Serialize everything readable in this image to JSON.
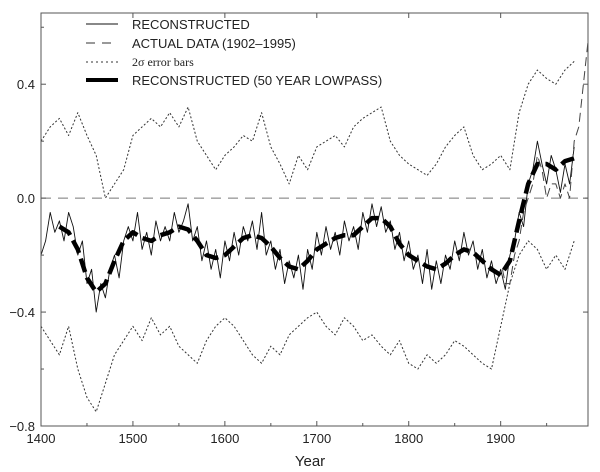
{
  "chart_data": {
    "type": "line",
    "title": "",
    "xlabel": "Year",
    "ylabel": "",
    "xlim": [
      1400,
      1995
    ],
    "ylim": [
      -0.8,
      0.65
    ],
    "x_ticks": [
      "1400",
      "1500",
      "1600",
      "1700",
      "1800",
      "1900"
    ],
    "y_ticks": [
      "0.4",
      "0.0",
      "-0.4",
      "-0.8"
    ],
    "grid": false,
    "zero_line": "dashed",
    "legend_position": "top-left",
    "legend": [
      {
        "label": "RECONSTRUCTED",
        "style": "thin-solid"
      },
      {
        "label": "ACTUAL DATA (1902–1995)",
        "style": "dashed"
      },
      {
        "label": "2σ error bars",
        "style": "dotted"
      },
      {
        "label": "RECONSTRUCTED (50 YEAR LOWPASS)",
        "style": "thick-dashed"
      }
    ],
    "colors": {
      "line": "#111111",
      "axis": "#555555"
    },
    "series": [
      {
        "name": "RECONSTRUCTED",
        "x_start": 1400,
        "x_step": 5,
        "values": [
          -0.2,
          -0.15,
          -0.05,
          -0.12,
          -0.08,
          -0.15,
          -0.05,
          -0.1,
          -0.2,
          -0.15,
          -0.3,
          -0.25,
          -0.4,
          -0.3,
          -0.35,
          -0.25,
          -0.2,
          -0.28,
          -0.15,
          -0.1,
          -0.15,
          -0.05,
          -0.18,
          -0.12,
          -0.2,
          -0.08,
          -0.15,
          -0.1,
          -0.15,
          -0.05,
          -0.12,
          -0.08,
          -0.02,
          -0.15,
          -0.1,
          -0.22,
          -0.15,
          -0.25,
          -0.18,
          -0.28,
          -0.15,
          -0.22,
          -0.12,
          -0.2,
          -0.1,
          -0.15,
          -0.08,
          -0.18,
          -0.05,
          -0.2,
          -0.15,
          -0.25,
          -0.18,
          -0.3,
          -0.22,
          -0.28,
          -0.2,
          -0.32,
          -0.18,
          -0.25,
          -0.12,
          -0.2,
          -0.1,
          -0.18,
          -0.12,
          -0.2,
          -0.08,
          -0.15,
          -0.1,
          -0.18,
          -0.05,
          -0.12,
          -0.02,
          -0.1,
          -0.03,
          -0.12,
          -0.08,
          -0.18,
          -0.12,
          -0.22,
          -0.15,
          -0.25,
          -0.2,
          -0.3,
          -0.18,
          -0.32,
          -0.22,
          -0.3,
          -0.2,
          -0.25,
          -0.15,
          -0.22,
          -0.12,
          -0.2,
          -0.15,
          -0.25,
          -0.18,
          -0.28,
          -0.22,
          -0.3,
          -0.25,
          -0.32,
          -0.2,
          -0.15,
          -0.05,
          -0.1,
          0.05,
          0.1,
          0.2,
          0.12,
          0.05,
          0.15,
          0.1,
          0.02,
          0.12,
          0.05,
          0.18
        ]
      },
      {
        "name": "ACTUAL DATA (1902–1995)",
        "x": [
          1902,
          1905,
          1910,
          1915,
          1920,
          1925,
          1930,
          1935,
          1940,
          1945,
          1950,
          1955,
          1960,
          1965,
          1970,
          1975,
          1980,
          1985,
          1990,
          1995
        ],
        "values": [
          -0.25,
          -0.3,
          -0.3,
          -0.2,
          -0.15,
          -0.05,
          0.0,
          0.05,
          0.15,
          0.1,
          0.0,
          0.05,
          0.05,
          0.0,
          0.05,
          0.0,
          0.2,
          0.25,
          0.4,
          0.55
        ]
      },
      {
        "name": "2σ error bars (upper)",
        "x_start": 1400,
        "x_step": 10,
        "values": [
          0.2,
          0.25,
          0.28,
          0.22,
          0.3,
          0.22,
          0.15,
          0.0,
          0.05,
          0.1,
          0.22,
          0.25,
          0.28,
          0.25,
          0.3,
          0.25,
          0.32,
          0.2,
          0.15,
          0.1,
          0.15,
          0.18,
          0.22,
          0.2,
          0.3,
          0.18,
          0.12,
          0.05,
          0.15,
          0.1,
          0.18,
          0.2,
          0.22,
          0.18,
          0.25,
          0.28,
          0.3,
          0.32,
          0.2,
          0.15,
          0.12,
          0.1,
          0.08,
          0.12,
          0.18,
          0.22,
          0.25,
          0.15,
          0.1,
          0.12,
          0.15,
          0.1,
          0.3,
          0.4,
          0.45,
          0.42,
          0.4,
          0.45,
          0.48
        ]
      },
      {
        "name": "2σ error bars (lower)",
        "x_start": 1400,
        "x_step": 10,
        "values": [
          -0.45,
          -0.5,
          -0.55,
          -0.45,
          -0.6,
          -0.7,
          -0.75,
          -0.65,
          -0.55,
          -0.5,
          -0.45,
          -0.5,
          -0.42,
          -0.48,
          -0.45,
          -0.52,
          -0.55,
          -0.58,
          -0.5,
          -0.45,
          -0.42,
          -0.45,
          -0.5,
          -0.55,
          -0.58,
          -0.52,
          -0.55,
          -0.48,
          -0.45,
          -0.42,
          -0.4,
          -0.45,
          -0.48,
          -0.42,
          -0.45,
          -0.5,
          -0.48,
          -0.52,
          -0.55,
          -0.5,
          -0.58,
          -0.6,
          -0.55,
          -0.58,
          -0.55,
          -0.5,
          -0.52,
          -0.55,
          -0.58,
          -0.6,
          -0.45,
          -0.3,
          -0.2,
          -0.15,
          -0.18,
          -0.25,
          -0.2,
          -0.25,
          -0.15
        ]
      },
      {
        "name": "RECONSTRUCTED (50 YEAR LOWPASS)",
        "x_start": 1420,
        "x_step": 10,
        "values": [
          -0.1,
          -0.12,
          -0.18,
          -0.28,
          -0.33,
          -0.3,
          -0.22,
          -0.15,
          -0.12,
          -0.14,
          -0.15,
          -0.13,
          -0.12,
          -0.1,
          -0.11,
          -0.15,
          -0.2,
          -0.21,
          -0.2,
          -0.17,
          -0.14,
          -0.13,
          -0.14,
          -0.17,
          -0.21,
          -0.24,
          -0.25,
          -0.22,
          -0.18,
          -0.16,
          -0.14,
          -0.13,
          -0.13,
          -0.1,
          -0.07,
          -0.07,
          -0.1,
          -0.16,
          -0.2,
          -0.22,
          -0.24,
          -0.25,
          -0.23,
          -0.2,
          -0.18,
          -0.19,
          -0.22,
          -0.25,
          -0.27,
          -0.22,
          -0.08,
          0.05,
          0.12,
          0.12,
          0.1,
          0.13,
          0.14
        ]
      }
    ]
  }
}
